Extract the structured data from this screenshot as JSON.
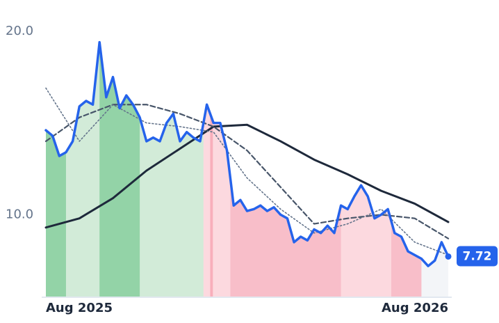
{
  "chart_data": {
    "type": "line",
    "x": [
      0,
      1,
      2,
      3,
      4,
      5,
      6,
      7,
      8,
      9,
      10,
      11,
      12,
      13,
      14,
      15,
      16,
      17,
      18,
      19,
      20,
      21,
      22,
      23,
      24,
      25,
      26,
      27,
      28,
      29,
      30,
      31,
      32,
      33,
      34,
      35,
      36,
      37,
      38,
      39,
      40,
      41,
      42,
      43,
      44,
      45,
      46,
      47,
      48,
      49,
      50,
      51,
      52,
      53,
      54,
      55,
      56,
      57,
      58,
      59,
      60
    ],
    "xlim": [
      0,
      60
    ],
    "xticks": [
      {
        "value": 0,
        "label": "Aug 2025"
      },
      {
        "value": 60,
        "label": "Aug 2026"
      }
    ],
    "ylim": [
      5.5,
      21.7
    ],
    "yticks": [
      {
        "value": 10,
        "label": "10.0"
      },
      {
        "value": 20,
        "label": "20.0"
      }
    ],
    "grid": false,
    "series": [
      {
        "color": "#2563eb",
        "values": [
          14.6,
          14.3,
          13.2,
          13.4,
          14.0,
          15.9,
          16.2,
          16.0,
          19.4,
          16.4,
          17.5,
          15.8,
          16.5,
          16.0,
          15.3,
          14.0,
          14.2,
          14.0,
          15.0,
          15.5,
          14.0,
          14.5,
          14.2,
          14.0,
          16.0,
          15.0,
          15.0,
          13.5,
          10.5,
          10.8,
          10.2,
          10.3,
          10.5,
          10.2,
          10.4,
          10.0,
          9.8,
          8.5,
          8.8,
          8.6,
          9.2,
          9.0,
          9.4,
          9.0,
          10.5,
          10.3,
          11.0,
          11.6,
          11.0,
          9.8,
          10.0,
          10.3,
          9.0,
          8.8,
          8.0,
          7.8,
          7.6,
          7.2,
          7.5,
          8.5,
          7.72
        ],
        "value_labels": [
          null,
          null,
          null,
          null,
          null,
          null,
          null,
          null,
          null,
          null,
          null,
          null,
          null,
          null,
          null,
          null,
          null,
          null,
          null,
          null,
          null,
          null,
          null,
          null,
          null,
          null,
          null,
          null,
          null,
          null,
          null,
          null,
          null,
          null,
          null,
          null,
          null,
          null,
          null,
          null,
          null,
          null,
          null,
          null,
          null,
          null,
          null,
          null,
          null,
          null,
          null,
          null,
          null,
          null,
          null,
          null,
          null,
          null,
          null,
          null,
          "7.72"
        ]
      },
      {
        "color": "#64748b",
        "style": "dotted",
        "x": [
          0,
          5,
          10,
          15,
          20,
          25,
          30,
          35,
          40,
          45,
          50,
          55,
          60
        ],
        "values": [
          16.9,
          14.0,
          16.0,
          15.0,
          14.8,
          14.5,
          12.0,
          10.3,
          9.0,
          9.5,
          10.3,
          8.5,
          7.8
        ]
      },
      {
        "color": "#475569",
        "style": "dashed",
        "x": [
          0,
          5,
          10,
          15,
          20,
          25,
          30,
          35,
          40,
          45,
          50,
          55,
          60
        ],
        "values": [
          14.0,
          15.3,
          16.0,
          16.0,
          15.5,
          14.8,
          13.5,
          11.5,
          9.5,
          9.8,
          10.0,
          9.8,
          8.7
        ]
      },
      {
        "color": "#1e293b",
        "style": "solid",
        "x": [
          0,
          5,
          10,
          15,
          20,
          25,
          30,
          35,
          40,
          45,
          50,
          55,
          60
        ],
        "values": [
          9.3,
          9.8,
          10.9,
          12.4,
          13.6,
          14.8,
          14.9,
          14.0,
          13.0,
          12.2,
          11.3,
          10.6,
          9.6
        ]
      }
    ],
    "bands": [
      {
        "from": 0,
        "to": 3,
        "color": "#93d3a7"
      },
      {
        "from": 3,
        "to": 8,
        "color": "#d2ebd8"
      },
      {
        "from": 8,
        "to": 14,
        "color": "#93d3a7"
      },
      {
        "from": 14,
        "to": 23.5,
        "color": "#d2ebd8"
      },
      {
        "from": 23.5,
        "to": 24.5,
        "color": "#fcd9df"
      },
      {
        "from": 24.5,
        "to": 24.9,
        "color": "#f8aebb"
      },
      {
        "from": 24.9,
        "to": 27.5,
        "color": "#fcd9df"
      },
      {
        "from": 27.5,
        "to": 44,
        "color": "#f8bec9"
      },
      {
        "from": 44,
        "to": 51.5,
        "color": "#fcd9df"
      },
      {
        "from": 51.5,
        "to": 56,
        "color": "#f8bec9"
      },
      {
        "from": 56,
        "to": 60,
        "color": "#f3f5f8"
      }
    ]
  }
}
